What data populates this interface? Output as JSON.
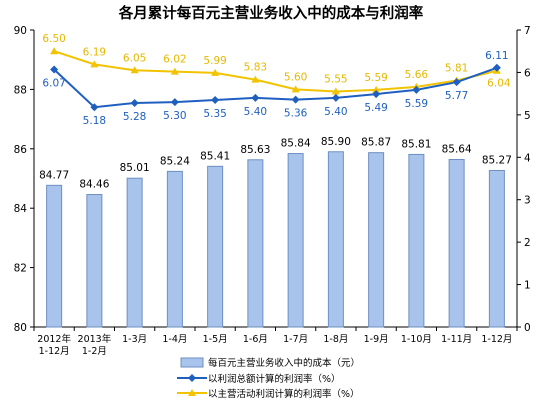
{
  "chart_data": {
    "type": "bar",
    "title": "各月累计每百元主营业务收入中的成本与利润率",
    "categories": [
      [
        "2012年",
        "1-12月"
      ],
      [
        "2013年",
        "1-2月"
      ],
      [
        "1-3月"
      ],
      [
        "1-4月"
      ],
      [
        "1-5月"
      ],
      [
        "1-6月"
      ],
      [
        "1-7月"
      ],
      [
        "1-8月"
      ],
      [
        "1-9月"
      ],
      [
        "1-10月"
      ],
      [
        "1-11月"
      ],
      [
        "1-12月"
      ]
    ],
    "left_axis": {
      "min": 80,
      "max": 90,
      "step": 2
    },
    "right_axis": {
      "min": 0,
      "max": 7,
      "step": 1
    },
    "grid": false,
    "legend_position": "bottom",
    "colors": {
      "bar_fill": "#a9c4ec",
      "bar_edge": "#6d8fc2",
      "blue_line": "#1f5fbf",
      "gold_line": "#f2c300"
    },
    "series": [
      {
        "name": "每百元主营业务收入中的成本（元）",
        "kind": "bar",
        "axis": "left",
        "values": [
          84.77,
          84.46,
          85.01,
          85.24,
          85.41,
          85.63,
          85.84,
          85.9,
          85.87,
          85.81,
          85.64,
          85.27
        ],
        "labels": [
          "84.77",
          "84.46",
          "85.01",
          "85.24",
          "85.41",
          "85.63",
          "85.84",
          "85.90",
          "85.87",
          "85.81",
          "85.64",
          "85.27"
        ]
      },
      {
        "name": "以利润总额计算的利润率（%）",
        "kind": "line",
        "marker": "diamond",
        "axis": "right",
        "values": [
          6.07,
          5.18,
          5.28,
          5.3,
          5.35,
          5.4,
          5.36,
          5.4,
          5.49,
          5.59,
          5.77,
          6.11
        ],
        "labels": [
          "6.07",
          "5.18",
          "5.28",
          "5.30",
          "5.35",
          "5.40",
          "5.36",
          "5.40",
          "5.49",
          "5.59",
          "5.77",
          "6.11"
        ]
      },
      {
        "name": "以主营活动利润计算的利润率（%）",
        "kind": "line",
        "marker": "triangle",
        "axis": "right",
        "values": [
          6.5,
          6.19,
          6.05,
          6.02,
          5.99,
          5.83,
          5.6,
          5.55,
          5.59,
          5.66,
          5.81,
          6.04
        ],
        "labels": [
          "6.50",
          "6.19",
          "6.05",
          "6.02",
          "5.99",
          "5.83",
          "5.60",
          "5.55",
          "5.59",
          "5.66",
          "5.81",
          "6.04"
        ]
      }
    ]
  }
}
